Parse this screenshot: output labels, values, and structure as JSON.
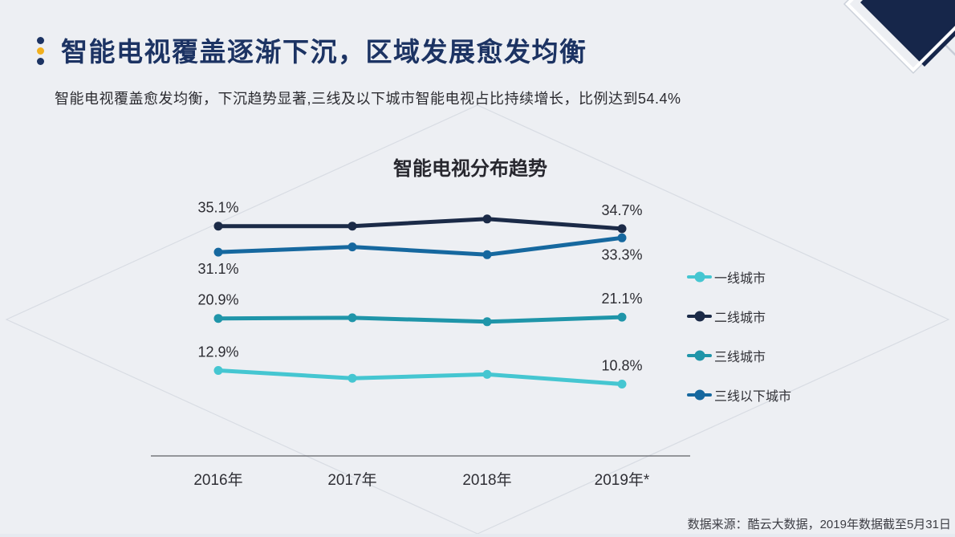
{
  "slide": {
    "title": "智能电视覆盖逐渐下沉，区域发展愈发均衡",
    "subtitle": "智能电视覆盖愈发均衡，下沉趋势显著,三线及以下城市智能电视占比持续增长，比例达到54.4%",
    "source_note": "数据来源：酷云大数据，2019年数据截至5月31日"
  },
  "colors": {
    "background": "#edeff3",
    "title_navy": "#1c3363",
    "accent_yellow": "#f2b01e",
    "corner_navy": "#16264a",
    "watermark_line": "#d8dce3",
    "axis_line": "#5f6066",
    "bottom_edge": "#e6eaf0",
    "label_text": "#2c2c32"
  },
  "chart_data": {
    "type": "line",
    "title": "智能电视分布趋势",
    "x": [
      "2016年",
      "2017年",
      "2018年",
      "2019年*"
    ],
    "series": [
      {
        "name": "一线城市",
        "color": "#45c6d1",
        "values": [
          12.9,
          11.7,
          12.3,
          10.8
        ],
        "point_labels": [
          "12.9%",
          null,
          null,
          "10.8%"
        ],
        "label_side": "above"
      },
      {
        "name": "二线城市",
        "color": "#1b2a47",
        "values": [
          35.1,
          35.1,
          36.2,
          34.7
        ],
        "point_labels": [
          "35.1%",
          null,
          null,
          "34.7%"
        ],
        "label_side": "above"
      },
      {
        "name": "三线城市",
        "color": "#1f95a9",
        "values": [
          20.9,
          21.0,
          20.4,
          21.1
        ],
        "point_labels": [
          "20.9%",
          null,
          null,
          "21.1%"
        ],
        "label_side": "above"
      },
      {
        "name": "三线以下城市",
        "color": "#16689f",
        "values": [
          31.1,
          31.9,
          30.7,
          33.3
        ],
        "point_labels": [
          "31.1%",
          null,
          null,
          "33.3%"
        ],
        "label_side": "below"
      }
    ],
    "legend_position": "right",
    "grid": false,
    "ylim": [
      0,
      45
    ],
    "y_unit": "%"
  }
}
